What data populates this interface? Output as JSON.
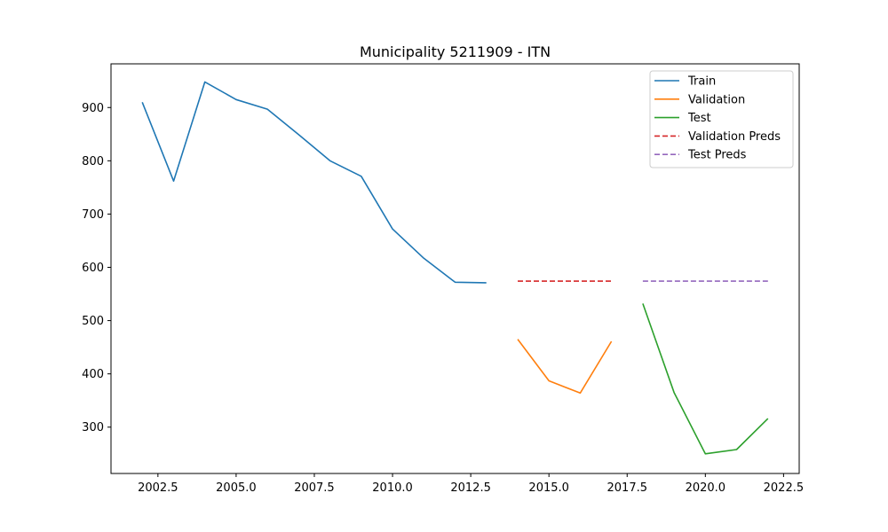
{
  "chart_data": {
    "type": "line",
    "title": "Municipality 5211909 - ITN",
    "xlabel": "",
    "ylabel": "",
    "xlim": [
      2001.0,
      2023.0
    ],
    "ylim": [
      213,
      982
    ],
    "x_ticks": [
      2002.5,
      2005.0,
      2007.5,
      2010.0,
      2012.5,
      2015.0,
      2017.5,
      2020.0,
      2022.5
    ],
    "x_tick_labels": [
      "2002.5",
      "2005.0",
      "2007.5",
      "2010.0",
      "2012.5",
      "2015.0",
      "2017.5",
      "2020.0",
      "2022.5"
    ],
    "y_ticks": [
      300,
      400,
      500,
      600,
      700,
      800,
      900
    ],
    "y_tick_labels": [
      "300",
      "400",
      "500",
      "600",
      "700",
      "800",
      "900"
    ],
    "grid": false,
    "legend_position": "top-right",
    "series": [
      {
        "name": "Train",
        "color": "#1f77b4",
        "dash": "solid",
        "x": [
          2002,
          2003,
          2004,
          2005,
          2006,
          2007,
          2008,
          2009,
          2010,
          2011,
          2012,
          2013
        ],
        "values": [
          910,
          762,
          948,
          915,
          897,
          849,
          800,
          771,
          672,
          617,
          572,
          571
        ]
      },
      {
        "name": "Validation",
        "color": "#ff7f0e",
        "dash": "solid",
        "x": [
          2014,
          2015,
          2016,
          2017
        ],
        "values": [
          465,
          387,
          364,
          461
        ]
      },
      {
        "name": "Test",
        "color": "#2ca02c",
        "dash": "solid",
        "x": [
          2018,
          2019,
          2020,
          2021,
          2022
        ],
        "values": [
          532,
          365,
          250,
          258,
          316
        ]
      },
      {
        "name": "Validation Preds",
        "color": "#d62728",
        "dash": "dashed",
        "x": [
          2014,
          2015,
          2016,
          2017
        ],
        "values": [
          574,
          574,
          574,
          574
        ]
      },
      {
        "name": "Test Preds",
        "color": "#9467bd",
        "dash": "dashed",
        "x": [
          2018,
          2019,
          2020,
          2021,
          2022
        ],
        "values": [
          574,
          574,
          574,
          574,
          574
        ]
      }
    ]
  }
}
